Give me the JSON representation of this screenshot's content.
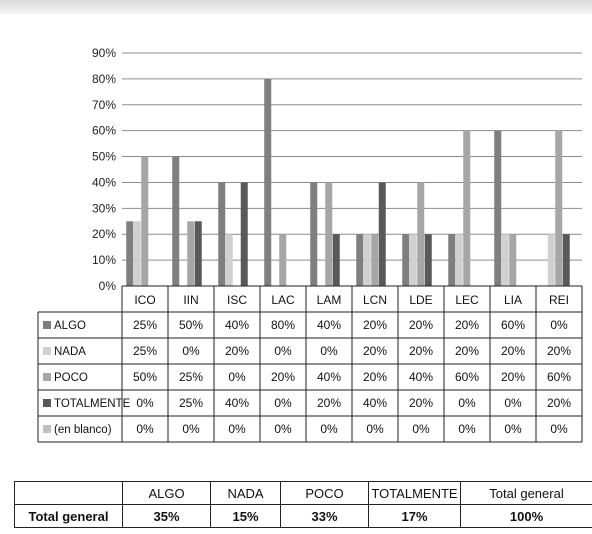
{
  "chart_data": {
    "type": "bar",
    "categories": [
      "ICO",
      "IIN",
      "ISC",
      "LAC",
      "LAM",
      "LCN",
      "LDE",
      "LEC",
      "LIA",
      "REI"
    ],
    "y_ticks": [
      "0%",
      "10%",
      "20%",
      "30%",
      "40%",
      "50%",
      "60%",
      "70%",
      "80%",
      "90%"
    ],
    "ylim": [
      0,
      90
    ],
    "legend_placement": "data-table",
    "grid": true,
    "series": [
      {
        "name": "ALGO",
        "color": "#7f7f7f",
        "values": [
          25,
          50,
          40,
          80,
          40,
          20,
          20,
          20,
          60,
          0
        ],
        "labels": [
          "25%",
          "50%",
          "40%",
          "80%",
          "40%",
          "20%",
          "20%",
          "20%",
          "60%",
          "0%"
        ]
      },
      {
        "name": "NADA",
        "color": "#d0d0d0",
        "values": [
          25,
          0,
          20,
          0,
          0,
          20,
          20,
          20,
          20,
          20
        ],
        "labels": [
          "25%",
          "0%",
          "20%",
          "0%",
          "0%",
          "20%",
          "20%",
          "20%",
          "20%",
          "20%"
        ]
      },
      {
        "name": "POCO",
        "color": "#a6a6a6",
        "values": [
          50,
          25,
          0,
          20,
          40,
          20,
          40,
          60,
          20,
          60
        ],
        "labels": [
          "50%",
          "25%",
          "0%",
          "20%",
          "40%",
          "20%",
          "40%",
          "60%",
          "20%",
          "60%"
        ]
      },
      {
        "name": "TOTALMENTE",
        "color": "#595959",
        "values": [
          0,
          25,
          40,
          0,
          20,
          40,
          20,
          0,
          0,
          20
        ],
        "labels": [
          "0%",
          "25%",
          "40%",
          "0%",
          "20%",
          "40%",
          "20%",
          "0%",
          "0%",
          "20%"
        ]
      },
      {
        "name": "(en blanco)",
        "color": "#bfbfbf",
        "values": [
          0,
          0,
          0,
          0,
          0,
          0,
          0,
          0,
          0,
          0
        ],
        "labels": [
          "0%",
          "0%",
          "0%",
          "0%",
          "0%",
          "0%",
          "0%",
          "0%",
          "0%",
          "0%"
        ]
      }
    ]
  },
  "summary": {
    "headers": [
      "ALGO",
      "NADA",
      "POCO",
      "TOTALMENTE",
      "Total general"
    ],
    "row_label": "Total general",
    "values": [
      "35%",
      "15%",
      "33%",
      "17%",
      "100%"
    ]
  }
}
